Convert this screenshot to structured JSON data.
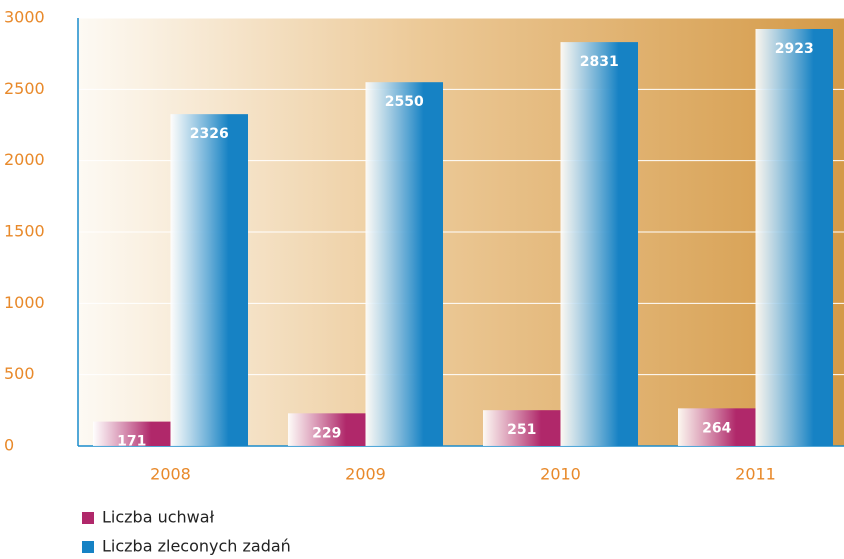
{
  "chart_data": {
    "type": "bar",
    "categories": [
      "2008",
      "2009",
      "2010",
      "2011"
    ],
    "series": [
      {
        "name": "Liczba uchwał",
        "color": "#b0286a",
        "values": [
          171,
          229,
          251,
          264
        ]
      },
      {
        "name": "Liczba zleconych zadań",
        "color": "#1682c4",
        "values": [
          2326,
          2550,
          2831,
          2923
        ]
      }
    ],
    "ylim": [
      0,
      3000
    ],
    "yticks": [
      0,
      500,
      1000,
      1500,
      2000,
      2500,
      3000
    ],
    "grid": true
  }
}
